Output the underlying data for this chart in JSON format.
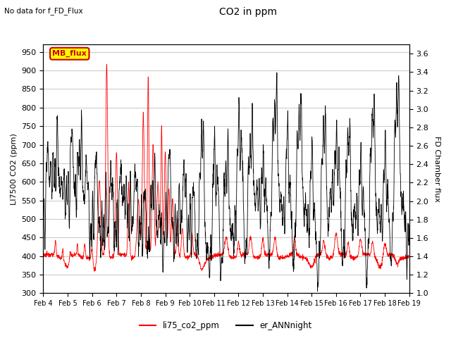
{
  "title": "CO2 in ppm",
  "subtitle": "No data for f_FD_Flux",
  "ylabel_left": "LI7500 CO2 (ppm)",
  "ylabel_right": "FD Chamber flux",
  "ylim_left": [
    300,
    970
  ],
  "ylim_right": [
    1.0,
    3.7
  ],
  "yticks_left": [
    300,
    350,
    400,
    450,
    500,
    550,
    600,
    650,
    700,
    750,
    800,
    850,
    900,
    950
  ],
  "yticks_right": [
    1.0,
    1.2,
    1.4,
    1.6,
    1.8,
    2.0,
    2.2,
    2.4,
    2.6,
    2.8,
    3.0,
    3.2,
    3.4,
    3.6
  ],
  "xtick_labels": [
    "Feb 4",
    "Feb 5",
    "Feb 6",
    "Feb 7",
    "Feb 8",
    "Feb 9",
    "Feb 10",
    "Feb 11",
    "Feb 12",
    "Feb 13",
    "Feb 14",
    "Feb 15",
    "Feb 16",
    "Feb 17",
    "Feb 18",
    "Feb 19"
  ],
  "legend_label_red": "li75_co2_ppm",
  "legend_label_black": "er_ANNnight",
  "mb_flux_label": "MB_flux",
  "line_color_red": "#ff0000",
  "line_color_black": "#000000",
  "mb_flux_box_color": "#ffff00",
  "mb_flux_text_color": "#cc0000",
  "mb_flux_border_color": "#cc0000",
  "grid_color": "#cccccc",
  "bg_color": "#ffffff",
  "fig_bg_color": "#ffffff"
}
